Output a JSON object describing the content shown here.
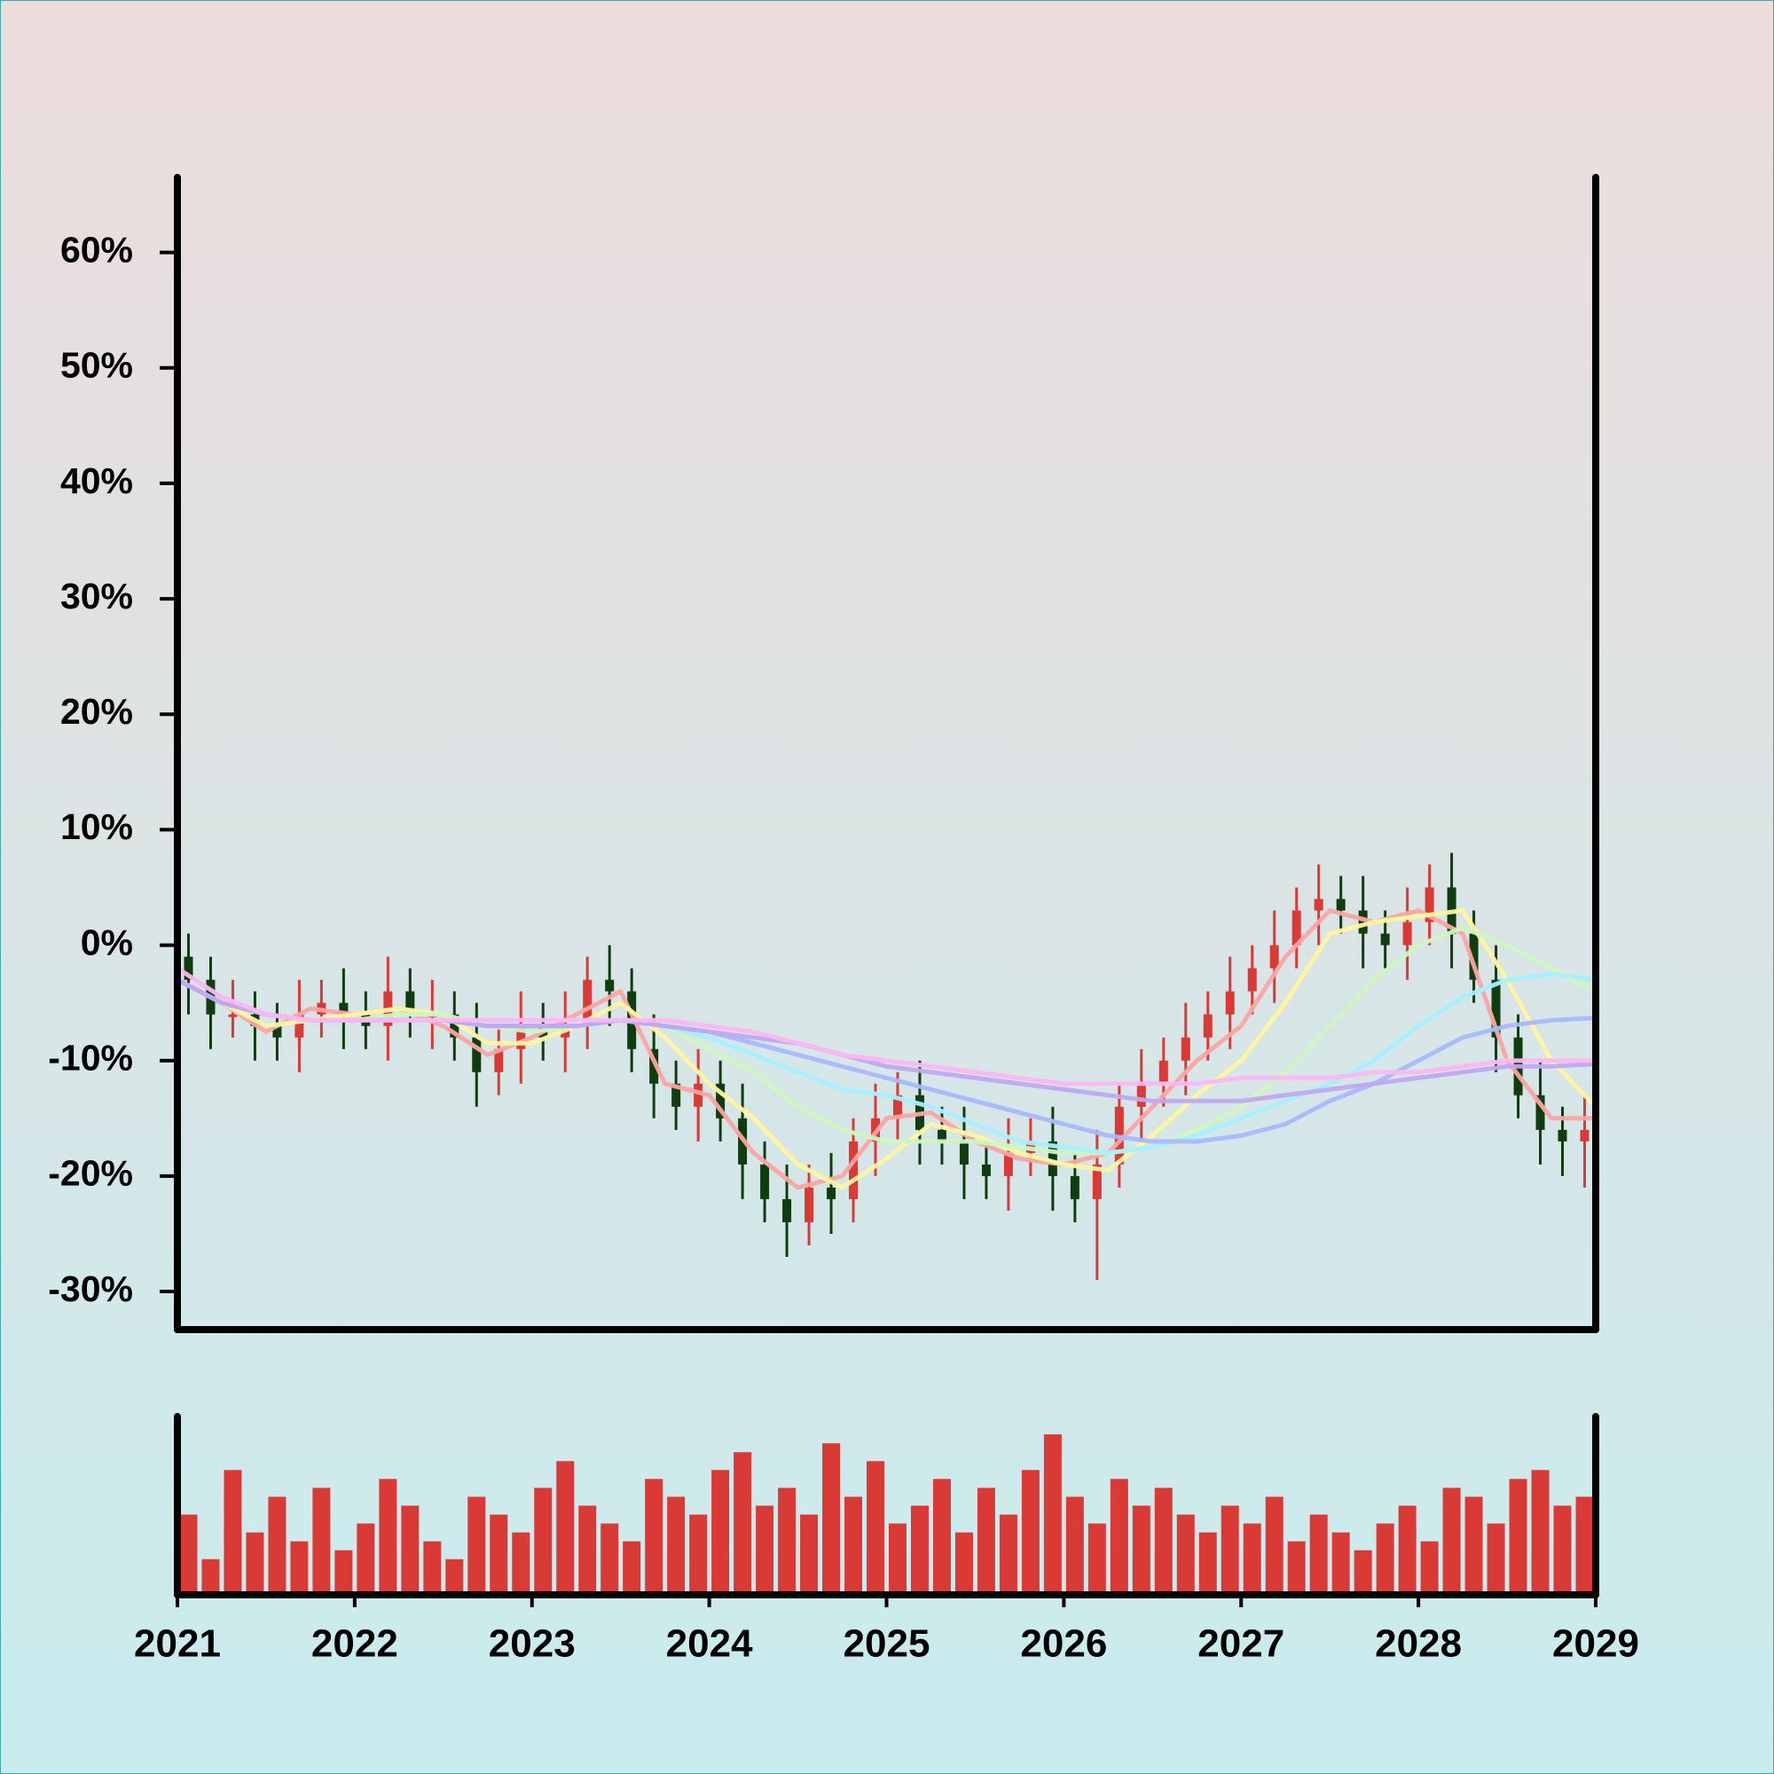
{
  "chart_data": [
    {
      "type": "candlestick",
      "x": [
        2021,
        2021.125,
        2021.25,
        2021.375,
        2021.5,
        2021.625,
        2021.75,
        2021.875,
        2022,
        2022.125,
        2022.25,
        2022.375,
        2022.5,
        2022.625,
        2022.75,
        2022.875,
        2023,
        2023.125,
        2023.25,
        2023.375,
        2023.5,
        2023.625,
        2023.75,
        2023.875,
        2024,
        2024.125,
        2024.25,
        2024.375,
        2024.5,
        2024.625,
        2024.75,
        2024.875,
        2025,
        2025.125,
        2025.25,
        2025.375,
        2025.5,
        2025.625,
        2025.75,
        2025.875,
        2026,
        2026.125,
        2026.25,
        2026.375,
        2026.5,
        2026.625,
        2026.75,
        2026.875,
        2027,
        2027.125,
        2027.25,
        2027.375,
        2027.5,
        2027.625,
        2027.75,
        2027.875,
        2028,
        2028.125,
        2028.25,
        2028.375,
        2028.5,
        2028.625,
        2028.75,
        2028.875
      ],
      "open": [
        -1,
        -3,
        -6,
        -6,
        -7,
        -8,
        -6,
        -5,
        -6,
        -7,
        -4,
        -6,
        -6,
        -8,
        -11,
        -9,
        -7,
        -8,
        -7,
        -3,
        -4,
        -9,
        -12,
        -14,
        -12,
        -15,
        -19,
        -22,
        -24,
        -21,
        -22,
        -17,
        -15,
        -13,
        -16,
        -17,
        -19,
        -20,
        -18,
        -17,
        -20,
        -22,
        -19,
        -14,
        -12,
        -10,
        -8,
        -6,
        -4,
        -2,
        0,
        3,
        4,
        3,
        1,
        0,
        2,
        5,
        1,
        -3,
        -8,
        -13,
        -16,
        -17
      ],
      "high": [
        1,
        -1,
        -3,
        -4,
        -5,
        -3,
        -3,
        -2,
        -4,
        -1,
        -2,
        -3,
        -4,
        -5,
        -7,
        -4,
        -5,
        -4,
        -1,
        0,
        -2,
        -6,
        -10,
        -9,
        -10,
        -12,
        -17,
        -19,
        -19,
        -18,
        -15,
        -12,
        -11,
        -10,
        -14,
        -14,
        -17,
        -15,
        -15,
        -14,
        -18,
        -16,
        -12,
        -9,
        -8,
        -5,
        -4,
        -1,
        0,
        3,
        5,
        7,
        6,
        6,
        3,
        5,
        7,
        8,
        3,
        0,
        -6,
        -10,
        -14,
        -13
      ],
      "low": [
        -6,
        -9,
        -8,
        -10,
        -10,
        -11,
        -8,
        -9,
        -9,
        -10,
        -8,
        -9,
        -10,
        -14,
        -13,
        -12,
        -10,
        -11,
        -9,
        -7,
        -11,
        -15,
        -16,
        -17,
        -17,
        -22,
        -24,
        -27,
        -26,
        -25,
        -24,
        -20,
        -17,
        -19,
        -19,
        -22,
        -22,
        -23,
        -20,
        -23,
        -24,
        -29,
        -21,
        -17,
        -14,
        -13,
        -10,
        -9,
        -6,
        -5,
        -2,
        0,
        1,
        -2,
        -2,
        -3,
        0,
        -2,
        -5,
        -11,
        -15,
        -19,
        -20,
        -21
      ],
      "close": [
        -3,
        -6,
        -6,
        -7,
        -8,
        -6,
        -5,
        -6,
        -7,
        -4,
        -6,
        -6,
        -8,
        -11,
        -9,
        -7,
        -8,
        -7,
        -3,
        -4,
        -9,
        -12,
        -14,
        -12,
        -15,
        -19,
        -22,
        -24,
        -21,
        -22,
        -17,
        -15,
        -13,
        -16,
        -17,
        -19,
        -20,
        -18,
        -17,
        -20,
        -22,
        -19,
        -14,
        -12,
        -10,
        -8,
        -6,
        -4,
        -2,
        0,
        3,
        4,
        3,
        1,
        0,
        2,
        5,
        1,
        -3,
        -8,
        -13,
        -16,
        -17,
        -16
      ],
      "up_color": "#d93a36",
      "down_color": "#0f3d0f",
      "ma_x": [
        2021,
        2021.25,
        2021.5,
        2021.75,
        2022,
        2022.25,
        2022.5,
        2022.75,
        2023,
        2023.25,
        2023.5,
        2023.75,
        2024,
        2024.25,
        2024.5,
        2024.75,
        2025,
        2025.25,
        2025.5,
        2025.75,
        2026,
        2026.25,
        2026.5,
        2026.75,
        2027,
        2027.25,
        2027.5,
        2027.75,
        2028,
        2028.25,
        2028.5,
        2028.75,
        2029
      ],
      "moving_averages": [
        {
          "color": "#ffa4a4",
          "values": [
            -3,
            -5,
            -7.5,
            -5.5,
            -6,
            -5.5,
            -7,
            -9.5,
            -8,
            -6,
            -4,
            -12,
            -13,
            -18,
            -21,
            -20,
            -15,
            -14.5,
            -17,
            -18.5,
            -19,
            -18,
            -14,
            -10,
            -7,
            -1,
            3,
            2,
            3,
            1,
            -10,
            -15,
            -15
          ]
        },
        {
          "color": "#fff6a0",
          "values": [
            -3,
            -5,
            -7,
            -6.5,
            -6,
            -5.5,
            -6,
            -8.5,
            -8.5,
            -7,
            -5,
            -8,
            -12,
            -15,
            -19,
            -21,
            -18.5,
            -15.5,
            -16.5,
            -18,
            -19,
            -19.5,
            -16.5,
            -13,
            -10,
            -5,
            1,
            2,
            2.5,
            3,
            -3,
            -10,
            -14
          ]
        },
        {
          "color": "#ccf7bf",
          "values": [
            -3,
            -5,
            -6,
            -6.5,
            -6.5,
            -6,
            -6,
            -7,
            -7.5,
            -7,
            -6.5,
            -7,
            -9,
            -11,
            -14,
            -16,
            -17,
            -17,
            -17,
            -17.5,
            -18,
            -18,
            -17.5,
            -16,
            -14,
            -11,
            -7,
            -3,
            0,
            1.5,
            0,
            -2,
            -4
          ]
        },
        {
          "color": "#a6f0ff",
          "values": [
            -3,
            -5,
            -6,
            -6.5,
            -6.5,
            -6.5,
            -6.5,
            -7,
            -7,
            -7,
            -6.5,
            -7,
            -8,
            -9.5,
            -11,
            -12.5,
            -13,
            -14,
            -15.5,
            -17,
            -17.5,
            -18,
            -17.5,
            -16.5,
            -15,
            -13.5,
            -12,
            -10,
            -7,
            -4.5,
            -3,
            -2.5,
            -3
          ]
        },
        {
          "color": "#a8b8ff",
          "values": [
            -3,
            -5,
            -6,
            -6.5,
            -6.5,
            -6.5,
            -6.5,
            -7,
            -7,
            -7,
            -6.5,
            -7,
            -7.5,
            -8.5,
            -9.5,
            -10.5,
            -11.5,
            -12.5,
            -13.5,
            -14.5,
            -15.5,
            -16.5,
            -17,
            -17,
            -16.5,
            -15.5,
            -13.5,
            -12,
            -10,
            -8,
            -7,
            -6.5,
            -6.3
          ]
        },
        {
          "color": "#c0a8f2",
          "values": [
            -3,
            -5,
            -6,
            -6.5,
            -6.5,
            -6.5,
            -6.5,
            -7,
            -7,
            -7,
            -6.5,
            -7,
            -7.5,
            -8,
            -8.5,
            -9.5,
            -10.5,
            -11,
            -11.5,
            -12,
            -12.5,
            -13,
            -13.5,
            -13.5,
            -13.5,
            -13,
            -12.5,
            -12,
            -11.5,
            -11,
            -10.5,
            -10.5,
            -10.3
          ]
        },
        {
          "color": "#ffb6f2",
          "values": [
            -2,
            -4.5,
            -6,
            -6.5,
            -6.5,
            -6.5,
            -6.5,
            -6.5,
            -6.5,
            -6.5,
            -6.5,
            -6.5,
            -7,
            -7.5,
            -8.5,
            -9.5,
            -10,
            -10.5,
            -11,
            -11.5,
            -12,
            -12,
            -12,
            -12,
            -11.5,
            -11.5,
            -11.5,
            -11,
            -11,
            -10.5,
            -10,
            -10,
            -10
          ]
        }
      ],
      "xlim": [
        2021,
        2029
      ],
      "ylim": [
        -33.3,
        66.5
      ],
      "yticks": [
        {
          "value": -30,
          "label": "-30%"
        },
        {
          "value": -20,
          "label": "-20%"
        },
        {
          "value": -10,
          "label": "-10%"
        },
        {
          "value": 0,
          "label": "0%"
        },
        {
          "value": 10,
          "label": "10%"
        },
        {
          "value": 20,
          "label": "20%"
        },
        {
          "value": 30,
          "label": "30%"
        },
        {
          "value": 40,
          "label": "40%"
        },
        {
          "value": 50,
          "label": "50%"
        },
        {
          "value": 60,
          "label": "60%"
        }
      ]
    },
    {
      "type": "bar",
      "x": [
        2021,
        2021.125,
        2021.25,
        2021.375,
        2021.5,
        2021.625,
        2021.75,
        2021.875,
        2022,
        2022.125,
        2022.25,
        2022.375,
        2022.5,
        2022.625,
        2022.75,
        2022.875,
        2023,
        2023.125,
        2023.25,
        2023.375,
        2023.5,
        2023.625,
        2023.75,
        2023.875,
        2024,
        2024.125,
        2024.25,
        2024.375,
        2024.5,
        2024.625,
        2024.75,
        2024.875,
        2025,
        2025.125,
        2025.25,
        2025.375,
        2025.5,
        2025.625,
        2025.75,
        2025.875,
        2026,
        2026.125,
        2026.25,
        2026.375,
        2026.5,
        2026.625,
        2026.75,
        2026.875,
        2027,
        2027.125,
        2027.25,
        2027.375,
        2027.5,
        2027.625,
        2027.75,
        2027.875,
        2028,
        2028.125,
        2028.25,
        2028.375,
        2028.5,
        2028.625,
        2028.75,
        2028.875
      ],
      "values": [
        45,
        20,
        70,
        35,
        55,
        30,
        60,
        25,
        40,
        65,
        50,
        30,
        20,
        55,
        45,
        35,
        60,
        75,
        50,
        40,
        30,
        65,
        55,
        45,
        70,
        80,
        50,
        60,
        45,
        85,
        55,
        75,
        40,
        50,
        65,
        35,
        60,
        45,
        70,
        90,
        55,
        40,
        65,
        50,
        60,
        45,
        35,
        50,
        40,
        55,
        30,
        45,
        35,
        25,
        40,
        50,
        30,
        60,
        55,
        40,
        65,
        70,
        50,
        55
      ],
      "color": "#d93a36",
      "xlim": [
        2021,
        2029
      ],
      "ylim": [
        0,
        100
      ],
      "xticks": [
        2021,
        2022,
        2023,
        2024,
        2025,
        2026,
        2027,
        2028,
        2029
      ]
    }
  ]
}
